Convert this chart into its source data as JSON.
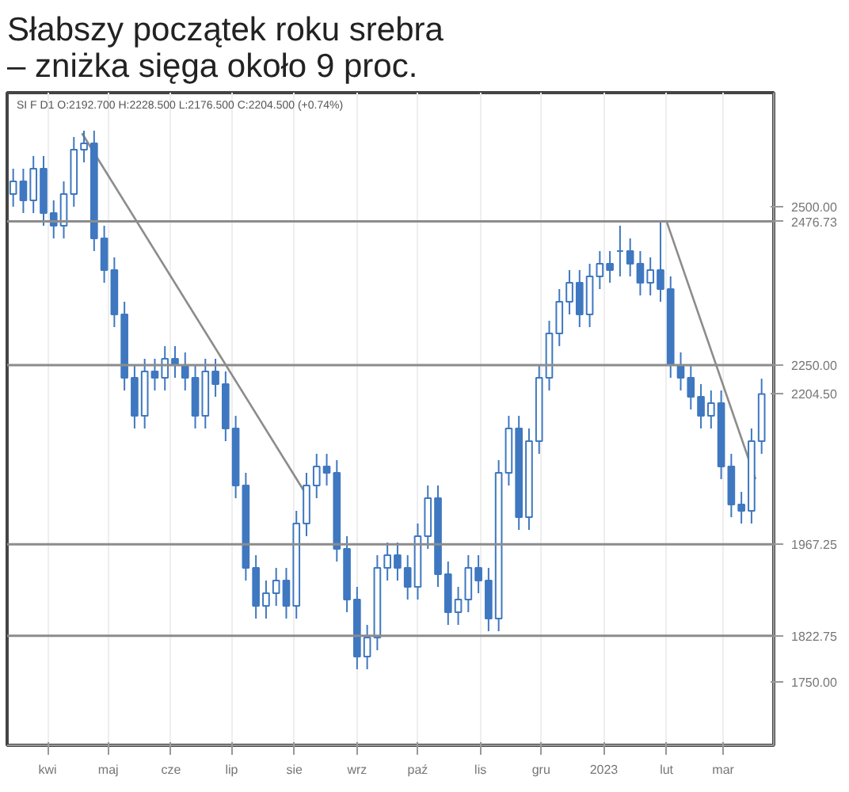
{
  "chart_data": {
    "type": "candlestick",
    "title": "Słabszy początek roku srebra\n– zniżka sięga około 9 proc.",
    "annotations": [
      "SI F D1 O:2192.700 H:2228.500 L:2176.500 C:2204.500 (+0.74%)"
    ],
    "x": [
      "2022-03-15",
      "2022-03-20",
      "2022-03-25",
      "2022-03-30",
      "2022-04-04",
      "2022-04-09",
      "2022-04-14",
      "2022-04-19",
      "2022-04-24",
      "2022-04-29",
      "2022-05-04",
      "2022-05-09",
      "2022-05-14",
      "2022-05-19",
      "2022-05-24",
      "2022-05-29",
      "2022-06-03",
      "2022-06-08",
      "2022-06-13",
      "2022-06-18",
      "2022-06-23",
      "2022-06-28",
      "2022-07-03",
      "2022-07-08",
      "2022-07-13",
      "2022-07-18",
      "2022-07-23",
      "2022-07-28",
      "2022-08-02",
      "2022-08-07",
      "2022-08-12",
      "2022-08-17",
      "2022-08-22",
      "2022-08-27",
      "2022-09-01",
      "2022-09-06",
      "2022-09-11",
      "2022-09-16",
      "2022-09-21",
      "2022-09-26",
      "2022-10-01",
      "2022-10-06",
      "2022-10-11",
      "2022-10-16",
      "2022-10-21",
      "2022-10-26",
      "2022-10-31",
      "2022-11-05",
      "2022-11-10",
      "2022-11-15",
      "2022-11-20",
      "2022-11-25",
      "2022-11-30",
      "2022-12-05",
      "2022-12-10",
      "2022-12-15",
      "2022-12-20",
      "2022-12-25",
      "2022-12-30",
      "2023-01-04",
      "2023-01-09",
      "2023-01-14",
      "2023-01-19",
      "2023-01-24",
      "2023-01-29",
      "2023-02-03",
      "2023-02-08",
      "2023-02-13",
      "2023-02-18",
      "2023-02-23",
      "2023-02-28",
      "2023-03-05",
      "2023-03-10",
      "2023-03-15",
      "2023-03-20"
    ],
    "ohlc": [
      [
        2520,
        2560,
        2500,
        2540
      ],
      [
        2540,
        2560,
        2490,
        2510
      ],
      [
        2510,
        2580,
        2490,
        2560
      ],
      [
        2560,
        2580,
        2470,
        2490
      ],
      [
        2490,
        2510,
        2450,
        2470
      ],
      [
        2470,
        2540,
        2450,
        2520
      ],
      [
        2520,
        2610,
        2500,
        2590
      ],
      [
        2590,
        2620,
        2570,
        2600
      ],
      [
        2600,
        2620,
        2430,
        2450
      ],
      [
        2450,
        2470,
        2380,
        2400
      ],
      [
        2400,
        2420,
        2310,
        2330
      ],
      [
        2330,
        2350,
        2210,
        2230
      ],
      [
        2230,
        2250,
        2150,
        2170
      ],
      [
        2170,
        2260,
        2150,
        2240
      ],
      [
        2240,
        2260,
        2210,
        2230
      ],
      [
        2230,
        2280,
        2210,
        2260
      ],
      [
        2260,
        2280,
        2230,
        2250
      ],
      [
        2250,
        2270,
        2210,
        2230
      ],
      [
        2230,
        2250,
        2150,
        2170
      ],
      [
        2170,
        2260,
        2150,
        2240
      ],
      [
        2240,
        2260,
        2200,
        2220
      ],
      [
        2220,
        2240,
        2130,
        2150
      ],
      [
        2150,
        2170,
        2040,
        2060
      ],
      [
        2060,
        2080,
        1910,
        1930
      ],
      [
        1930,
        1950,
        1850,
        1870
      ],
      [
        1870,
        1910,
        1850,
        1890
      ],
      [
        1890,
        1930,
        1870,
        1910
      ],
      [
        1910,
        1930,
        1850,
        1870
      ],
      [
        1870,
        2020,
        1850,
        2000
      ],
      [
        2000,
        2080,
        1980,
        2060
      ],
      [
        2060,
        2110,
        2040,
        2090
      ],
      [
        2090,
        2110,
        2060,
        2080
      ],
      [
        2080,
        2100,
        1940,
        1960
      ],
      [
        1960,
        1980,
        1860,
        1880
      ],
      [
        1880,
        1900,
        1770,
        1790
      ],
      [
        1790,
        1840,
        1770,
        1820
      ],
      [
        1820,
        1950,
        1800,
        1930
      ],
      [
        1930,
        1970,
        1910,
        1950
      ],
      [
        1950,
        1970,
        1910,
        1930
      ],
      [
        1930,
        1950,
        1880,
        1900
      ],
      [
        1900,
        2000,
        1880,
        1980
      ],
      [
        1980,
        2060,
        1960,
        2040
      ],
      [
        2040,
        2060,
        1900,
        1920
      ],
      [
        1920,
        1940,
        1840,
        1860
      ],
      [
        1860,
        1900,
        1840,
        1880
      ],
      [
        1880,
        1950,
        1860,
        1930
      ],
      [
        1930,
        1950,
        1890,
        1910
      ],
      [
        1910,
        1930,
        1830,
        1850
      ],
      [
        1850,
        2100,
        1830,
        2080
      ],
      [
        2080,
        2170,
        2060,
        2150
      ],
      [
        2150,
        2170,
        1990,
        2010
      ],
      [
        2010,
        2150,
        1990,
        2130
      ],
      [
        2130,
        2250,
        2110,
        2230
      ],
      [
        2230,
        2320,
        2210,
        2300
      ],
      [
        2300,
        2370,
        2280,
        2350
      ],
      [
        2350,
        2400,
        2330,
        2380
      ],
      [
        2380,
        2400,
        2310,
        2330
      ],
      [
        2330,
        2410,
        2310,
        2390
      ],
      [
        2390,
        2430,
        2370,
        2410
      ],
      [
        2410,
        2430,
        2380,
        2400
      ],
      [
        2430,
        2470,
        2390,
        2430
      ],
      [
        2430,
        2450,
        2390,
        2410
      ],
      [
        2410,
        2430,
        2360,
        2380
      ],
      [
        2380,
        2420,
        2360,
        2400
      ],
      [
        2400,
        2477,
        2350,
        2370
      ],
      [
        2370,
        2390,
        2230,
        2250
      ],
      [
        2250,
        2270,
        2210,
        2230
      ],
      [
        2230,
        2250,
        2180,
        2200
      ],
      [
        2200,
        2220,
        2150,
        2170
      ],
      [
        2170,
        2210,
        2150,
        2190
      ],
      [
        2190,
        2210,
        2070,
        2090
      ],
      [
        2090,
        2110,
        2010,
        2030
      ],
      [
        2030,
        2050,
        2000,
        2020
      ],
      [
        2020,
        2150,
        2000,
        2130
      ],
      [
        2130,
        2228.5,
        2110,
        2204.5
      ]
    ],
    "color": "#3f78c0",
    "series": [
      {
        "type": "line",
        "color": "#8c8c8c",
        "x": [
          "2022-04-18",
          "2022-08-07"
        ],
        "values": [
          2616,
          2045
        ]
      },
      {
        "type": "line",
        "color": "#8c8c8c",
        "x": [
          "2023-02-01",
          "2023-03-17"
        ],
        "values": [
          2477,
          2070
        ]
      }
    ],
    "ref_lines": [
      {
        "axis": "y",
        "value": 2476.73,
        "label": "2476.73",
        "color": "#8c8c8c"
      },
      {
        "axis": "y",
        "value": 2250,
        "label": null,
        "color": "#8c8c8c"
      },
      {
        "axis": "y",
        "value": 1967.25,
        "label": "1967.25",
        "color": "#8c8c8c"
      },
      {
        "axis": "y",
        "value": 1822.75,
        "label": "1822.75",
        "color": "#8c8c8c"
      }
    ],
    "xlim": [
      "2022-03-12",
      "2023-03-26"
    ],
    "xticks": [
      {
        "value": "2022-04-01",
        "label": "kwi"
      },
      {
        "value": "2022-05-01",
        "label": "maj"
      },
      {
        "value": "2022-06-01",
        "label": "cze"
      },
      {
        "value": "2022-07-01",
        "label": "lip"
      },
      {
        "value": "2022-08-01",
        "label": "sie"
      },
      {
        "value": "2022-09-01",
        "label": "wrz"
      },
      {
        "value": "2022-10-01",
        "label": "paź"
      },
      {
        "value": "2022-11-01",
        "label": "lis"
      },
      {
        "value": "2022-12-01",
        "label": "gru"
      },
      {
        "value": "2023-01-01",
        "label": "2023"
      },
      {
        "value": "2023-02-01",
        "label": "lut"
      },
      {
        "value": "2023-03-01",
        "label": "mar"
      }
    ],
    "ylim": [
      1650,
      2680
    ],
    "yticks": [
      {
        "value": 1750,
        "label": "1750.00"
      },
      {
        "value": 2204.5,
        "label": "2204.50"
      },
      {
        "value": 2250,
        "label": "2250.00"
      },
      {
        "value": 2500,
        "label": "2500.00"
      }
    ],
    "grid": "x"
  }
}
